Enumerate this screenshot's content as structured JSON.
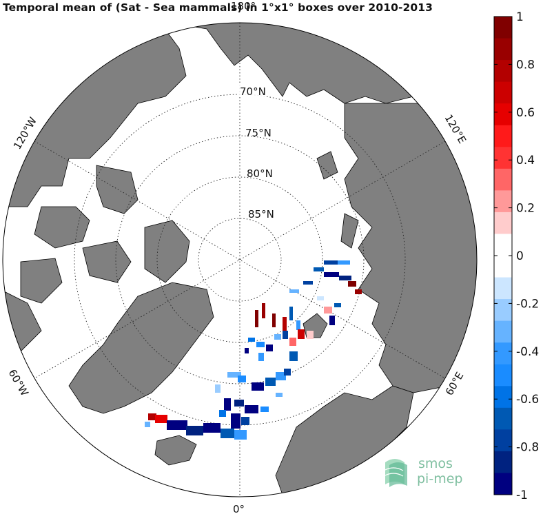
{
  "title": "Temporal mean of (Sat - Sea mammals) in 1°x1° boxes over 2010-2013",
  "map": {
    "projection": "north-polar-stereographic",
    "latitude_labels": [
      "70°N",
      "75°N",
      "80°N",
      "85°N"
    ],
    "longitude_labels": {
      "top": "180°",
      "bottom": "0°",
      "upper_left": "120°W",
      "upper_right": "120°E",
      "lower_left": "60°W",
      "lower_right": "60°E"
    },
    "colors": {
      "land": "#808080",
      "ocean": "#ffffff",
      "coast": "#000000"
    }
  },
  "colorbar": {
    "ticks": [
      "1",
      "0.8",
      "0.6",
      "0.4",
      "0.2",
      "0",
      "-0.2",
      "-0.4",
      "-0.6",
      "-0.8",
      "-1"
    ],
    "range": [
      -1,
      1
    ],
    "colors": [
      "#800000",
      "#990000",
      "#b30000",
      "#cc0000",
      "#e60000",
      "#ff1a1a",
      "#ff3333",
      "#ff6666",
      "#ff9999",
      "#ffcccc",
      "#ffffff",
      "#ffffff",
      "#cce6ff",
      "#99ccff",
      "#66b3ff",
      "#3399ff",
      "#1a8cff",
      "#0073e6",
      "#0059b3",
      "#0040a0",
      "#002280",
      "#000080"
    ]
  },
  "logo": {
    "line1": "smos",
    "line2": "pi-mep"
  }
}
